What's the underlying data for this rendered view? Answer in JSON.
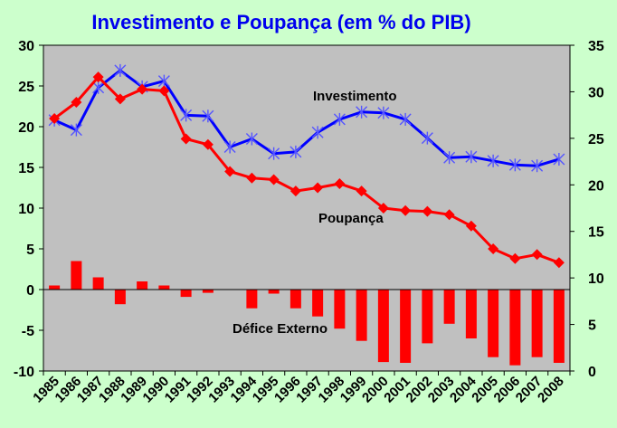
{
  "chart_data": {
    "type": "line",
    "title": "Investimento e Poupança (em % do PIB)",
    "categories": [
      "1985",
      "1986",
      "1987",
      "1988",
      "1989",
      "1990",
      "1991",
      "1992",
      "1993",
      "1994",
      "1995",
      "1996",
      "1997",
      "1998",
      "1999",
      "2000",
      "2001",
      "2002",
      "2003",
      "2004",
      "2005",
      "2006",
      "2007",
      "2008"
    ],
    "ylim_left": [
      -10,
      30
    ],
    "yticks_left": [
      "-10",
      "-5",
      "0",
      "5",
      "10",
      "15",
      "20",
      "25",
      "30"
    ],
    "ylim_right": [
      0,
      35
    ],
    "yticks_right": [
      "0",
      "5",
      "10",
      "15",
      "20",
      "25",
      "30",
      "35"
    ],
    "grid": false,
    "legend": "none",
    "series": [
      {
        "name": "Investimento",
        "type": "line",
        "marker": "star",
        "color": "#0000ff",
        "values": [
          20.8,
          19.6,
          24.8,
          26.9,
          24.9,
          25.6,
          21.4,
          21.3,
          17.5,
          18.5,
          16.7,
          16.9,
          19.3,
          20.9,
          21.8,
          21.7,
          20.9,
          18.6,
          16.2,
          16.3,
          15.8,
          15.3,
          15.2,
          16.0
        ]
      },
      {
        "name": "Poupança",
        "type": "line",
        "marker": "diamond",
        "color": "#ff0000",
        "values": [
          21.0,
          23.0,
          26.1,
          23.4,
          24.6,
          24.4,
          18.5,
          17.8,
          14.5,
          13.7,
          13.5,
          12.1,
          12.5,
          13.0,
          12.1,
          10.0,
          9.7,
          9.6,
          9.2,
          7.8,
          5.0,
          3.8,
          4.3,
          3.3
        ]
      },
      {
        "name": "Défice Externo",
        "type": "bar",
        "color": "#ff0000",
        "values": [
          0.5,
          3.5,
          1.5,
          -1.8,
          1.0,
          0.5,
          -0.9,
          -0.4,
          0.0,
          -2.3,
          -0.5,
          -2.3,
          -3.3,
          -4.8,
          -6.3,
          -8.9,
          -9.0,
          -6.6,
          -4.2,
          -6.0,
          -8.3,
          -9.3,
          -8.3,
          -9.0
        ]
      }
    ],
    "annotations": [
      {
        "text": "Investimento",
        "series": 0
      },
      {
        "text": "Poupança",
        "series": 1
      },
      {
        "text": "Défice Externo",
        "series": 2
      }
    ]
  }
}
